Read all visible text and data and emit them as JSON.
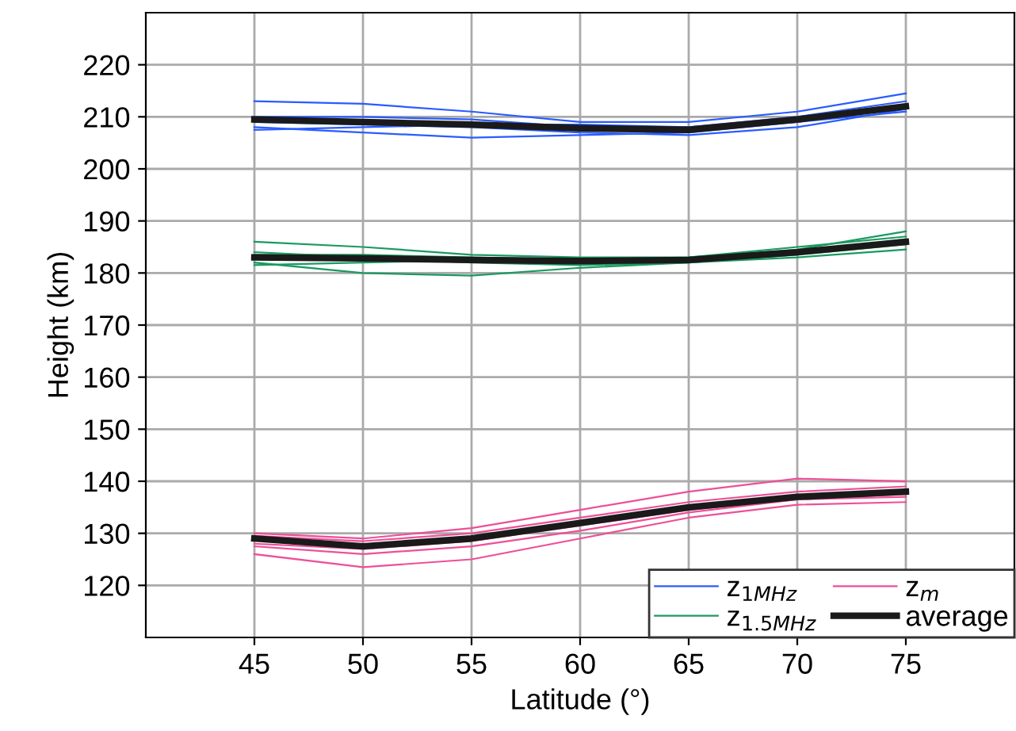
{
  "chart_data": {
    "type": "line",
    "xlabel": "Latitude (°)",
    "ylabel": "Height (km)",
    "x": [
      45,
      50,
      55,
      60,
      65,
      70,
      75
    ],
    "xlim": [
      40,
      80
    ],
    "ylim": [
      110,
      230
    ],
    "xticks": [
      45,
      50,
      55,
      60,
      65,
      70,
      75
    ],
    "yticks": [
      120,
      130,
      140,
      150,
      160,
      170,
      180,
      190,
      200,
      210,
      220
    ],
    "grid": true,
    "legend": "bottom right",
    "marker": "none",
    "line_style": "solid",
    "series": [
      {
        "name": "z$_{1MHz}$",
        "color": "#2a5cff",
        "values": [
          213,
          212.5,
          211,
          209,
          209,
          211,
          214.5
        ]
      },
      {
        "color": "#2a5cff",
        "values": [
          208,
          207,
          206,
          206.5,
          207,
          209,
          211
        ]
      },
      {
        "color": "#2a5cff",
        "values": [
          210,
          210,
          209.5,
          208,
          208,
          210,
          213
        ]
      },
      {
        "color": "#2a5cff",
        "values": [
          209,
          208.5,
          208,
          207,
          206.5,
          208,
          211.5
        ]
      },
      {
        "color": "#2a5cff",
        "values": [
          207.5,
          208,
          208.5,
          208.5,
          208,
          209,
          212
        ]
      },
      {
        "name": "z$_{1.5MHz}$",
        "color": "#1a9a60",
        "values": [
          186,
          185,
          183.5,
          183,
          183,
          184.5,
          188
        ]
      },
      {
        "color": "#1a9a60",
        "values": [
          182,
          180,
          179.5,
          181,
          182,
          183,
          184.5
        ]
      },
      {
        "color": "#1a9a60",
        "values": [
          183.5,
          183.5,
          183,
          182.5,
          183,
          185,
          187
        ]
      },
      {
        "color": "#1a9a60",
        "values": [
          181.5,
          182,
          182.5,
          182,
          182,
          183.5,
          185.5
        ]
      },
      {
        "color": "#1a9a60",
        "values": [
          184,
          183,
          182,
          181.5,
          182,
          184,
          186.5
        ]
      },
      {
        "name": "z$_{m}$",
        "color": "#ee4f98",
        "values": [
          126,
          123.5,
          125,
          129,
          133,
          135.5,
          136
        ]
      },
      {
        "color": "#ee4f98",
        "values": [
          130,
          129,
          131,
          134.5,
          138,
          140.5,
          140
        ]
      },
      {
        "color": "#ee4f98",
        "values": [
          128,
          127,
          128.5,
          131.5,
          134.5,
          136.5,
          137
        ]
      },
      {
        "color": "#ee4f98",
        "values": [
          129.5,
          128.5,
          130,
          133,
          136,
          138,
          139
        ]
      },
      {
        "color": "#ee4f98",
        "values": [
          127.5,
          126,
          127.5,
          130.5,
          134,
          136.5,
          137.5
        ]
      },
      {
        "name": "average",
        "color": "#1a1a1a",
        "values": [
          209.5,
          209,
          208.5,
          207.8,
          207.5,
          209.5,
          212
        ]
      },
      {
        "color": "#1a1a1a",
        "values": [
          183,
          182.8,
          182.5,
          182.3,
          182.5,
          184,
          186
        ]
      },
      {
        "color": "#1a1a1a",
        "values": [
          129,
          127.5,
          129,
          132,
          135,
          137,
          138
        ]
      }
    ]
  }
}
